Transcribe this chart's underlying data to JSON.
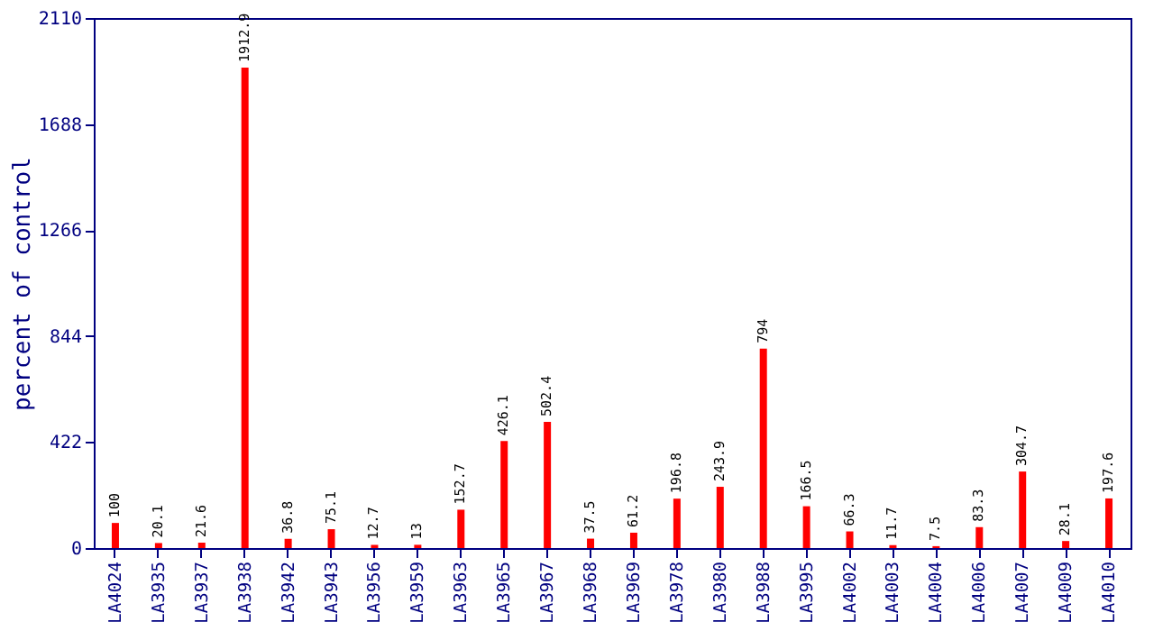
{
  "chart_data": {
    "type": "bar",
    "ylabel": "percent of control",
    "categories": [
      "LA4024",
      "LA3935",
      "LA3937",
      "LA3938",
      "LA3942",
      "LA3943",
      "LA3956",
      "LA3959",
      "LA3963",
      "LA3965",
      "LA3967",
      "LA3968",
      "LA3969",
      "LA3978",
      "LA3980",
      "LA3988",
      "LA3995",
      "LA4002",
      "LA4003",
      "LA4004",
      "LA4006",
      "LA4007",
      "LA4009",
      "LA4010"
    ],
    "values": [
      100,
      20.1,
      21.6,
      1912.9,
      36.8,
      75.1,
      12.7,
      13,
      152.7,
      426.1,
      502.4,
      37.5,
      61.2,
      196.8,
      243.9,
      794,
      166.5,
      66.3,
      11.7,
      7.5,
      83.3,
      304.7,
      28.1,
      197.6
    ],
    "color": "#ff0000",
    "ylim": [
      0,
      2110
    ],
    "yticks": [
      0,
      422,
      844,
      1266,
      1688,
      2110
    ],
    "data_labels": true,
    "grid": false
  }
}
